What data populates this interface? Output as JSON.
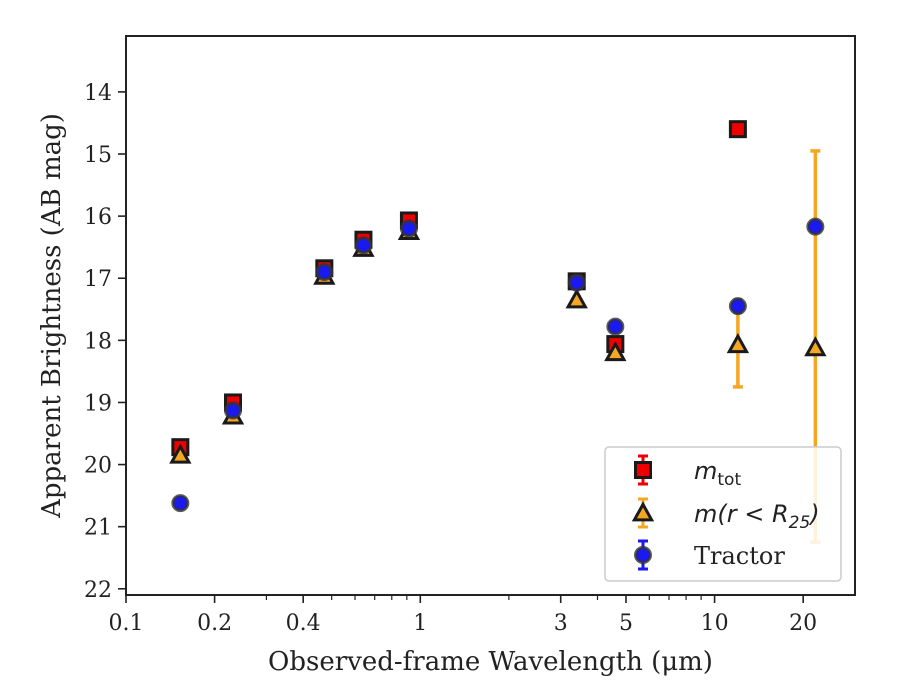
{
  "chart_data": {
    "type": "scatter",
    "xlabel": "Observed-frame Wavelength (μm)",
    "ylabel": "Apparent Brightness (AB mag)",
    "xscale": "log",
    "xlim": [
      0.1,
      30
    ],
    "ylim": [
      22.1,
      13.1
    ],
    "y_inverted": true,
    "x_ticks": [
      0.1,
      0.2,
      0.4,
      1,
      3,
      5,
      10,
      20
    ],
    "x_tick_labels": [
      "0.1",
      "0.2",
      "0.4",
      "1",
      "3",
      "5",
      "10",
      "20"
    ],
    "y_ticks": [
      14,
      15,
      16,
      17,
      18,
      19,
      20,
      21,
      22
    ],
    "y_tick_labels": [
      "14",
      "15",
      "16",
      "17",
      "18",
      "19",
      "20",
      "21",
      "22"
    ],
    "grid": false,
    "legend_position": "bottom-right",
    "series": [
      {
        "name": "m_tot",
        "legend_label_main": "m",
        "legend_label_sub": "tot",
        "marker": "square",
        "color": "#ee0000",
        "edge_color": "#1a1a1a",
        "points": [
          {
            "x": 0.153,
            "y": 19.72,
            "err": 0.05
          },
          {
            "x": 0.231,
            "y": 19.0,
            "err": 0.05
          },
          {
            "x": 0.472,
            "y": 16.84,
            "err": 0.05
          },
          {
            "x": 0.641,
            "y": 16.38,
            "err": 0.05
          },
          {
            "x": 0.915,
            "y": 16.07,
            "err": 0.05
          },
          {
            "x": 3.4,
            "y": 17.05,
            "err": 0.05
          },
          {
            "x": 4.6,
            "y": 18.06,
            "err": 0.05
          },
          {
            "x": 12.0,
            "y": 14.6,
            "err": 0.03
          }
        ]
      },
      {
        "name": "m(r < R25)",
        "legend_label_main": "m(r < R",
        "legend_label_sub": "25",
        "legend_label_end": ")",
        "marker": "triangle",
        "color": "#f5a623",
        "edge_color": "#1a1a1a",
        "points": [
          {
            "x": 0.153,
            "y": 19.85,
            "err": 0.05
          },
          {
            "x": 0.231,
            "y": 19.22,
            "err": 0.05
          },
          {
            "x": 0.472,
            "y": 16.97,
            "err": 0.05
          },
          {
            "x": 0.641,
            "y": 16.52,
            "err": 0.05
          },
          {
            "x": 0.915,
            "y": 16.25,
            "err": 0.05
          },
          {
            "x": 3.4,
            "y": 17.35,
            "err": 0.05
          },
          {
            "x": 4.6,
            "y": 18.2,
            "err": 0.05
          },
          {
            "x": 12.0,
            "y": 18.07,
            "err": 0.68
          },
          {
            "x": 22.0,
            "y": 18.12,
            "err_low": 3.13,
            "err_high": 3.17
          }
        ]
      },
      {
        "name": "Tractor",
        "marker": "circle",
        "color": "#1a1aee",
        "edge_color": "#333333",
        "points": [
          {
            "x": 0.153,
            "y": 20.62,
            "err": 0.08
          },
          {
            "x": 0.231,
            "y": 19.13,
            "err": 0.05
          },
          {
            "x": 0.472,
            "y": 16.9,
            "err": 0.05
          },
          {
            "x": 0.641,
            "y": 16.47,
            "err": 0.05
          },
          {
            "x": 0.915,
            "y": 16.2,
            "err": 0.05
          },
          {
            "x": 3.4,
            "y": 17.07,
            "err": 0.05
          },
          {
            "x": 4.6,
            "y": 17.78,
            "err": 0.05
          },
          {
            "x": 12.0,
            "y": 17.45,
            "err": 0.1
          },
          {
            "x": 22.0,
            "y": 16.17,
            "err": 0.08
          }
        ]
      }
    ]
  }
}
